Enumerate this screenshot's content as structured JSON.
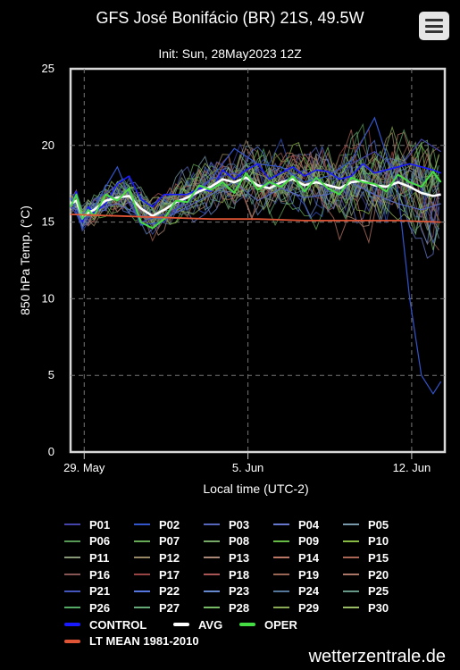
{
  "header": {
    "title": "GFS José Bonifácio (BR) 21S, 49.5W",
    "subtitle": "Init: Sun, 28May2023 12Z",
    "menu_icon": "hamburger-menu-icon"
  },
  "watermark": "wetterzentrale.de",
  "chart_data": {
    "type": "line",
    "title": "GFS José Bonifácio (BR) 21S, 49.5W",
    "subtitle": "Init: Sun, 28May2023 12Z",
    "xlabel": "Local time (UTC-2)",
    "ylabel": "850 hPa Temp. (°C)",
    "ylim": [
      0,
      25
    ],
    "yticks": [
      0,
      5,
      10,
      15,
      20,
      25
    ],
    "xlim": [
      "2023-05-28T10:00",
      "2023-06-13T10:00"
    ],
    "xticks": [
      {
        "t": "2023-05-29T00:00",
        "label": "29. May"
      },
      {
        "t": "2023-06-05T00:00",
        "label": "5. Jun"
      },
      {
        "t": "2023-06-12T00:00",
        "label": "12. Jun"
      }
    ],
    "grid": true,
    "legend_position": "bottom",
    "series": [
      {
        "name": "CONTROL",
        "color": "#1a1aff",
        "values": [
          [
            0,
            16
          ],
          [
            6,
            17
          ],
          [
            12,
            15
          ],
          [
            18,
            16
          ],
          [
            24,
            15.6
          ],
          [
            36,
            16.2
          ],
          [
            48,
            17.5
          ],
          [
            60,
            18
          ],
          [
            72,
            16.5
          ],
          [
            84,
            16
          ],
          [
            96,
            16.8
          ],
          [
            108,
            16.8
          ],
          [
            120,
            16.8
          ],
          [
            132,
            17.2
          ],
          [
            144,
            17
          ],
          [
            156,
            18.4
          ],
          [
            168,
            17.8
          ],
          [
            180,
            18.4
          ],
          [
            192,
            18.8
          ],
          [
            204,
            17.8
          ],
          [
            216,
            18.2
          ],
          [
            228,
            18.6
          ],
          [
            240,
            18
          ],
          [
            252,
            18.4
          ],
          [
            264,
            18.3
          ],
          [
            276,
            17.8
          ],
          [
            288,
            18
          ],
          [
            300,
            18.8
          ],
          [
            312,
            18.2
          ],
          [
            324,
            18.4
          ],
          [
            336,
            18.6
          ],
          [
            348,
            18.8
          ],
          [
            360,
            18.6
          ],
          [
            372,
            18.4
          ],
          [
            380,
            18.2
          ]
        ]
      },
      {
        "name": "AVG",
        "color": "#ffffff",
        "values": [
          [
            0,
            16.2
          ],
          [
            6,
            16.4
          ],
          [
            12,
            15.3
          ],
          [
            18,
            15.6
          ],
          [
            24,
            15.8
          ],
          [
            36,
            16.4
          ],
          [
            48,
            16.6
          ],
          [
            60,
            16.7
          ],
          [
            72,
            15.9
          ],
          [
            84,
            15.4
          ],
          [
            96,
            15.8
          ],
          [
            108,
            16.3
          ],
          [
            120,
            16.6
          ],
          [
            132,
            17
          ],
          [
            144,
            17.3
          ],
          [
            156,
            17.8
          ],
          [
            168,
            17.6
          ],
          [
            180,
            17.9
          ],
          [
            192,
            17.4
          ],
          [
            204,
            17.2
          ],
          [
            216,
            17.6
          ],
          [
            228,
            17.8
          ],
          [
            240,
            17.4
          ],
          [
            252,
            17.6
          ],
          [
            264,
            17.4
          ],
          [
            276,
            17.2
          ],
          [
            288,
            17.6
          ],
          [
            300,
            17.7
          ],
          [
            312,
            17.4
          ],
          [
            324,
            17.3
          ],
          [
            336,
            17.6
          ],
          [
            348,
            17.3
          ],
          [
            360,
            16.9
          ],
          [
            372,
            16.7
          ],
          [
            380,
            16.8
          ]
        ]
      },
      {
        "name": "OPER",
        "color": "#44dd44",
        "values": [
          [
            0,
            16
          ],
          [
            6,
            16.8
          ],
          [
            12,
            15.2
          ],
          [
            18,
            15.8
          ],
          [
            24,
            15.4
          ],
          [
            36,
            16.8
          ],
          [
            48,
            16.4
          ],
          [
            60,
            17.2
          ],
          [
            72,
            15
          ],
          [
            84,
            14.6
          ],
          [
            96,
            15.2
          ],
          [
            108,
            16.4
          ],
          [
            120,
            16.3
          ],
          [
            132,
            17.4
          ],
          [
            144,
            17.1
          ],
          [
            156,
            17.6
          ],
          [
            168,
            16.9
          ],
          [
            180,
            18.2
          ],
          [
            192,
            17.1
          ],
          [
            204,
            17.6
          ],
          [
            216,
            17.3
          ],
          [
            228,
            18
          ],
          [
            240,
            17
          ],
          [
            252,
            17.9
          ],
          [
            264,
            17.2
          ],
          [
            276,
            16.8
          ],
          [
            288,
            17.9
          ],
          [
            300,
            17.6
          ],
          [
            312,
            17.5
          ],
          [
            324,
            17
          ],
          [
            336,
            18.1
          ],
          [
            348,
            17.6
          ],
          [
            360,
            17.3
          ],
          [
            372,
            18.3
          ],
          [
            380,
            17.6
          ]
        ]
      },
      {
        "name": "LT MEAN 1981-2010",
        "color": "#e05535",
        "values": [
          [
            0,
            15.5
          ],
          [
            48,
            15.4
          ],
          [
            96,
            15.3
          ],
          [
            144,
            15.2
          ],
          [
            192,
            15.2
          ],
          [
            240,
            15.1
          ],
          [
            288,
            15.1
          ],
          [
            336,
            15.1
          ],
          [
            380,
            15
          ]
        ]
      }
    ],
    "member_values_sample": [
      {
        "name": "P01",
        "values": [
          [
            0,
            16
          ],
          [
            12,
            15
          ],
          [
            24,
            16.4
          ],
          [
            48,
            17.4
          ],
          [
            72,
            15
          ],
          [
            96,
            15.5
          ],
          [
            120,
            16.2
          ],
          [
            144,
            17.8
          ],
          [
            168,
            18.2
          ],
          [
            192,
            17.4
          ],
          [
            216,
            17.6
          ],
          [
            240,
            18.4
          ],
          [
            264,
            17
          ],
          [
            288,
            18.8
          ],
          [
            312,
            19.6
          ],
          [
            336,
            18.4
          ],
          [
            360,
            20.4
          ],
          [
            380,
            19.6
          ]
        ]
      },
      {
        "name": "P02",
        "values": [
          [
            0,
            16.6
          ],
          [
            12,
            14.6
          ],
          [
            24,
            16
          ],
          [
            48,
            18.6
          ],
          [
            72,
            14.8
          ],
          [
            96,
            15
          ],
          [
            120,
            16.6
          ],
          [
            144,
            17.8
          ],
          [
            168,
            19.8
          ],
          [
            192,
            18.8
          ],
          [
            216,
            18.6
          ],
          [
            240,
            17.6
          ],
          [
            264,
            18
          ],
          [
            288,
            19
          ],
          [
            312,
            21.8
          ],
          [
            336,
            17
          ],
          [
            348,
            10
          ],
          [
            360,
            5
          ],
          [
            372,
            3.8
          ],
          [
            380,
            4.6
          ]
        ]
      },
      {
        "name": "P03",
        "values": [
          [
            0,
            16
          ],
          [
            12,
            15.6
          ],
          [
            24,
            15.8
          ],
          [
            48,
            16.2
          ],
          [
            72,
            15.4
          ],
          [
            96,
            15.2
          ],
          [
            120,
            16
          ],
          [
            144,
            16.8
          ],
          [
            168,
            17.6
          ],
          [
            192,
            16.4
          ],
          [
            216,
            17.2
          ],
          [
            240,
            16.6
          ],
          [
            264,
            16.8
          ],
          [
            288,
            17.6
          ],
          [
            312,
            16.8
          ],
          [
            336,
            16.2
          ],
          [
            360,
            15.8
          ],
          [
            380,
            16.2
          ]
        ]
      }
    ]
  },
  "legend": {
    "members": [
      "P01",
      "P02",
      "P03",
      "P04",
      "P05",
      "P06",
      "P07",
      "P08",
      "P09",
      "P10",
      "P11",
      "P12",
      "P13",
      "P14",
      "P15",
      "P16",
      "P17",
      "P18",
      "P19",
      "P20",
      "P21",
      "P22",
      "P23",
      "P24",
      "P25",
      "P26",
      "P27",
      "P28",
      "P29",
      "P30"
    ],
    "member_colors": [
      "#4444aa",
      "#3355cc",
      "#5566bb",
      "#6677cc",
      "#7799aa",
      "#559955",
      "#66aa55",
      "#77aa66",
      "#66bb44",
      "#88bb44",
      "#889977",
      "#998866",
      "#aa8877",
      "#bb7766",
      "#aa6655",
      "#885555",
      "#994444",
      "#aa5555",
      "#996655",
      "#aa7766",
      "#4455bb",
      "#5577dd",
      "#6688cc",
      "#557799",
      "#669988",
      "#55aa66",
      "#66aa77",
      "#77bb66",
      "#88aa55",
      "#99bb66"
    ],
    "special": [
      {
        "label": "CONTROL",
        "color": "#1a1aff"
      },
      {
        "label": "AVG",
        "color": "#ffffff"
      },
      {
        "label": "OPER",
        "color": "#44dd44"
      },
      {
        "label": "LT MEAN 1981-2010",
        "color": "#e05535"
      }
    ]
  }
}
